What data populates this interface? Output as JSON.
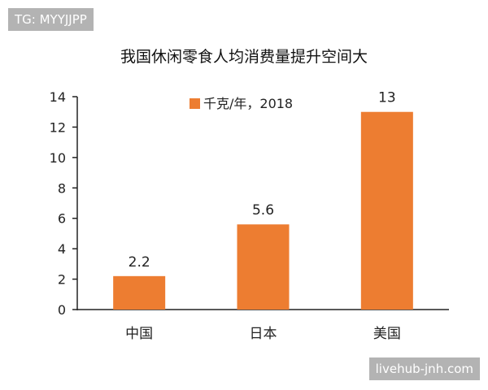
{
  "watermark_top": "TG: MYYJJPP",
  "watermark_bottom": "livehub-jnh.com",
  "colors": {
    "bar": "#ed7d31",
    "axis": "#222222",
    "badge": "#b3b3b3"
  },
  "chart_data": {
    "type": "bar",
    "title": "我国休闲零食人均消费量提升空间大",
    "categories": [
      "中国",
      "日本",
      "美国"
    ],
    "series": [
      {
        "name": "千克/年，2018",
        "values": [
          2.2,
          5.6,
          13
        ]
      }
    ],
    "data_labels": [
      "2.2",
      "5.6",
      "13"
    ],
    "y_ticks": [
      0,
      2,
      4,
      6,
      8,
      10,
      12,
      14
    ],
    "ylim": [
      0,
      14
    ],
    "xlabel": "",
    "ylabel": "",
    "grid": false,
    "legend_position": "top"
  }
}
